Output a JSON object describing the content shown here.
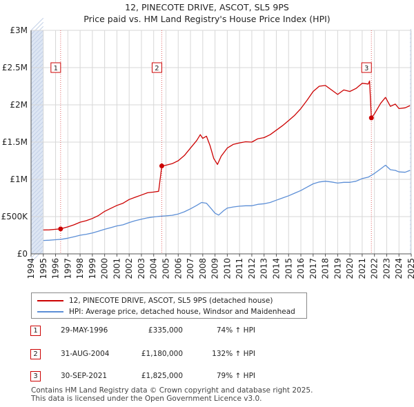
{
  "title_line1": "12, PINECOTE DRIVE, ASCOT, SL5 9PS",
  "title_line2": "Price paid vs. HM Land Registry's House Price Index (HPI)",
  "colors": {
    "property": "#cc0000",
    "hpi": "#5b8ed6",
    "shade": "#dde6f4",
    "grid": "#d7d7d7"
  },
  "chart_data": {
    "type": "line",
    "xlim": [
      1994.0,
      2025.0
    ],
    "ylim": [
      0,
      3000000
    ],
    "y_ticks": [
      {
        "value": 0,
        "label": "£0"
      },
      {
        "value": 500000,
        "label": "£500K"
      },
      {
        "value": 1000000,
        "label": "£1M"
      },
      {
        "value": 1500000,
        "label": "£1.5M"
      },
      {
        "value": 2000000,
        "label": "£2M"
      },
      {
        "value": 2500000,
        "label": "£2.5M"
      },
      {
        "value": 3000000,
        "label": "£3M"
      }
    ],
    "x_ticks": [
      "1994",
      "1995",
      "1996",
      "1997",
      "1998",
      "1999",
      "2000",
      "2001",
      "2002",
      "2003",
      "2004",
      "2005",
      "2006",
      "2007",
      "2008",
      "2009",
      "2010",
      "2011",
      "2012",
      "2013",
      "2014",
      "2015",
      "2016",
      "2017",
      "2018",
      "2019",
      "2020",
      "2021",
      "2022",
      "2023",
      "2024",
      "2025"
    ],
    "shaded_regions": [
      [
        1994.0,
        1995.0
      ],
      [
        2024.9,
        2025.0
      ]
    ],
    "series": [
      {
        "name": "12, PINECOTE DRIVE, ASCOT, SL5 9PS (detached house)",
        "color": "#cc0000",
        "points": [
          [
            1995.0,
            320000
          ],
          [
            1995.5,
            322000
          ],
          [
            1996.0,
            330000
          ],
          [
            1996.41,
            335000
          ],
          [
            1997.0,
            362000
          ],
          [
            1997.5,
            390000
          ],
          [
            1998.0,
            425000
          ],
          [
            1998.5,
            445000
          ],
          [
            1999.0,
            475000
          ],
          [
            1999.5,
            515000
          ],
          [
            2000.0,
            570000
          ],
          [
            2000.5,
            610000
          ],
          [
            2001.0,
            650000
          ],
          [
            2001.5,
            680000
          ],
          [
            2002.0,
            730000
          ],
          [
            2002.5,
            760000
          ],
          [
            2003.0,
            790000
          ],
          [
            2003.5,
            820000
          ],
          [
            2004.0,
            830000
          ],
          [
            2004.4,
            840000
          ],
          [
            2004.66,
            1180000
          ],
          [
            2005.0,
            1190000
          ],
          [
            2005.5,
            1210000
          ],
          [
            2006.0,
            1250000
          ],
          [
            2006.5,
            1320000
          ],
          [
            2007.0,
            1420000
          ],
          [
            2007.5,
            1520000
          ],
          [
            2007.8,
            1600000
          ],
          [
            2008.0,
            1550000
          ],
          [
            2008.3,
            1580000
          ],
          [
            2008.6,
            1450000
          ],
          [
            2008.9,
            1280000
          ],
          [
            2009.2,
            1200000
          ],
          [
            2009.5,
            1310000
          ],
          [
            2010.0,
            1420000
          ],
          [
            2010.5,
            1470000
          ],
          [
            2011.0,
            1490000
          ],
          [
            2011.5,
            1505000
          ],
          [
            2012.0,
            1500000
          ],
          [
            2012.5,
            1545000
          ],
          [
            2013.0,
            1560000
          ],
          [
            2013.5,
            1600000
          ],
          [
            2014.0,
            1660000
          ],
          [
            2014.5,
            1720000
          ],
          [
            2015.0,
            1790000
          ],
          [
            2015.5,
            1860000
          ],
          [
            2016.0,
            1950000
          ],
          [
            2016.5,
            2060000
          ],
          [
            2017.0,
            2180000
          ],
          [
            2017.5,
            2250000
          ],
          [
            2018.0,
            2260000
          ],
          [
            2018.5,
            2200000
          ],
          [
            2019.0,
            2140000
          ],
          [
            2019.5,
            2200000
          ],
          [
            2020.0,
            2180000
          ],
          [
            2020.5,
            2220000
          ],
          [
            2021.0,
            2290000
          ],
          [
            2021.5,
            2280000
          ],
          [
            2021.6,
            2320000
          ],
          [
            2021.75,
            1825000
          ],
          [
            2022.0,
            1880000
          ],
          [
            2022.5,
            2020000
          ],
          [
            2022.9,
            2100000
          ],
          [
            2023.3,
            1980000
          ],
          [
            2023.7,
            2010000
          ],
          [
            2024.0,
            1950000
          ],
          [
            2024.5,
            1960000
          ],
          [
            2024.9,
            1990000
          ]
        ]
      },
      {
        "name": "HPI: Average price, detached house, Windsor and Maidenhead",
        "color": "#5b8ed6",
        "points": [
          [
            1995.0,
            180000
          ],
          [
            1995.5,
            183000
          ],
          [
            1996.0,
            190000
          ],
          [
            1996.5,
            196000
          ],
          [
            1997.0,
            210000
          ],
          [
            1997.5,
            230000
          ],
          [
            1998.0,
            250000
          ],
          [
            1998.5,
            263000
          ],
          [
            1999.0,
            280000
          ],
          [
            1999.5,
            305000
          ],
          [
            2000.0,
            330000
          ],
          [
            2000.5,
            352000
          ],
          [
            2001.0,
            375000
          ],
          [
            2001.5,
            390000
          ],
          [
            2002.0,
            420000
          ],
          [
            2002.5,
            445000
          ],
          [
            2003.0,
            465000
          ],
          [
            2003.5,
            483000
          ],
          [
            2004.0,
            495000
          ],
          [
            2004.5,
            505000
          ],
          [
            2005.0,
            510000
          ],
          [
            2005.5,
            518000
          ],
          [
            2006.0,
            535000
          ],
          [
            2006.5,
            565000
          ],
          [
            2007.0,
            605000
          ],
          [
            2007.5,
            650000
          ],
          [
            2007.9,
            690000
          ],
          [
            2008.3,
            680000
          ],
          [
            2008.7,
            605000
          ],
          [
            2009.0,
            545000
          ],
          [
            2009.3,
            520000
          ],
          [
            2009.7,
            580000
          ],
          [
            2010.0,
            615000
          ],
          [
            2010.5,
            630000
          ],
          [
            2011.0,
            640000
          ],
          [
            2011.5,
            645000
          ],
          [
            2012.0,
            645000
          ],
          [
            2012.5,
            665000
          ],
          [
            2013.0,
            672000
          ],
          [
            2013.5,
            690000
          ],
          [
            2014.0,
            720000
          ],
          [
            2014.5,
            750000
          ],
          [
            2015.0,
            780000
          ],
          [
            2015.5,
            815000
          ],
          [
            2016.0,
            850000
          ],
          [
            2016.5,
            895000
          ],
          [
            2017.0,
            940000
          ],
          [
            2017.5,
            965000
          ],
          [
            2018.0,
            975000
          ],
          [
            2018.5,
            965000
          ],
          [
            2019.0,
            950000
          ],
          [
            2019.5,
            960000
          ],
          [
            2020.0,
            960000
          ],
          [
            2020.5,
            975000
          ],
          [
            2021.0,
            1010000
          ],
          [
            2021.5,
            1030000
          ],
          [
            2022.0,
            1080000
          ],
          [
            2022.5,
            1140000
          ],
          [
            2022.9,
            1190000
          ],
          [
            2023.3,
            1130000
          ],
          [
            2023.7,
            1120000
          ],
          [
            2024.0,
            1100000
          ],
          [
            2024.5,
            1095000
          ],
          [
            2024.9,
            1120000
          ]
        ]
      }
    ],
    "sales": [
      {
        "label": "1",
        "x": 1996.41,
        "price": 335000,
        "box_y": 2500000
      },
      {
        "label": "2",
        "x": 2004.66,
        "price": 1180000,
        "box_y": 2500000
      },
      {
        "label": "3",
        "x": 2021.75,
        "price": 1825000,
        "box_y": 2500000
      }
    ]
  },
  "legend": {
    "property": "12, PINECOTE DRIVE, ASCOT, SL5 9PS (detached house)",
    "hpi": "HPI: Average price, detached house, Windsor and Maidenhead"
  },
  "transactions": [
    {
      "num": "1",
      "date": "29-MAY-1996",
      "price": "£335,000",
      "hpi": "74% ↑ HPI"
    },
    {
      "num": "2",
      "date": "31-AUG-2004",
      "price": "£1,180,000",
      "hpi": "132% ↑ HPI"
    },
    {
      "num": "3",
      "date": "30-SEP-2021",
      "price": "£1,825,000",
      "hpi": "79% ↑ HPI"
    }
  ],
  "footer_line1": "Contains HM Land Registry data © Crown copyright and database right 2025.",
  "footer_line2": "This data is licensed under the Open Government Licence v3.0."
}
